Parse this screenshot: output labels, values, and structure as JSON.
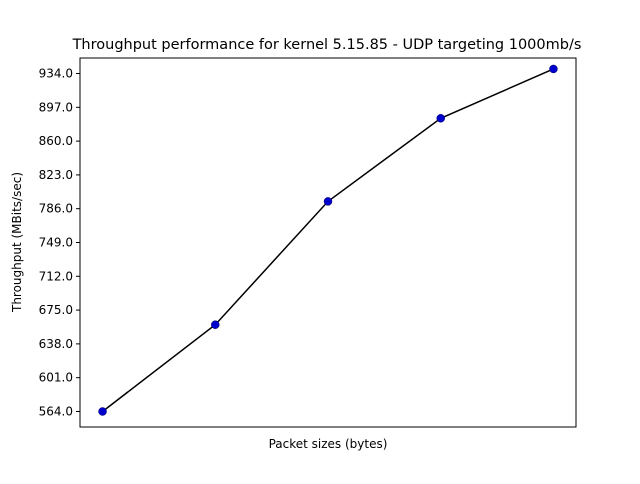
{
  "chart_data": {
    "type": "line",
    "title": "Throughput performance for kernel 5.15.85 - UDP targeting 1000mb/s",
    "xlabel": "Packet sizes (bytes)",
    "ylabel": "Throughput (MBits/sec)",
    "x_tick_labels": [],
    "y_ticks": [
      "564.0",
      "601.0",
      "638.0",
      "675.0",
      "712.0",
      "749.0",
      "786.0",
      "823.0",
      "860.0",
      "897.0",
      "934.0"
    ],
    "ylim": [
      547,
      951
    ],
    "xlim": [
      -0.2,
      4.2
    ],
    "grid": false,
    "legend": "none",
    "series": [
      {
        "values": [
          564.0,
          659.0,
          794.0,
          885.0,
          939.0
        ],
        "line_color": "#000000",
        "marker_color": "#0000cc"
      }
    ]
  }
}
